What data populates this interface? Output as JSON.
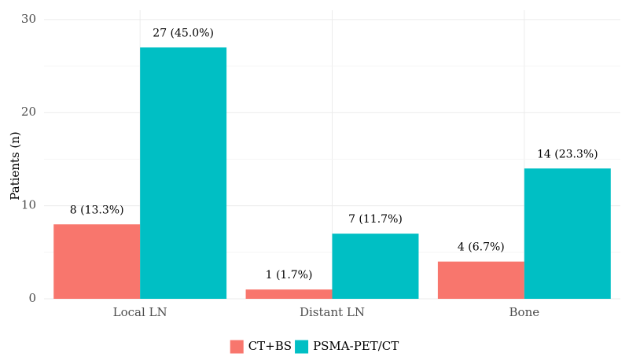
{
  "chart_data": {
    "type": "bar",
    "categories": [
      "Local LN",
      "Distant LN",
      "Bone"
    ],
    "series": [
      {
        "name": "CT+BS",
        "color": "#F8766D",
        "values": [
          8,
          1,
          4
        ],
        "labels": [
          "8 (13.3%)",
          "1 (1.7%)",
          "4 (6.7%)"
        ]
      },
      {
        "name": "PSMA-PET/CT",
        "color": "#00BFC4",
        "values": [
          27,
          7,
          14
        ],
        "labels": [
          "27 (45.0%)",
          "7 (11.7%)",
          "14 (23.3%)"
        ]
      }
    ],
    "ylabel": "Patients (n)",
    "xlabel": "",
    "ylim": [
      0,
      31
    ],
    "yticks": [
      0,
      10,
      20,
      30
    ],
    "legend": "bottom",
    "grid": true
  }
}
